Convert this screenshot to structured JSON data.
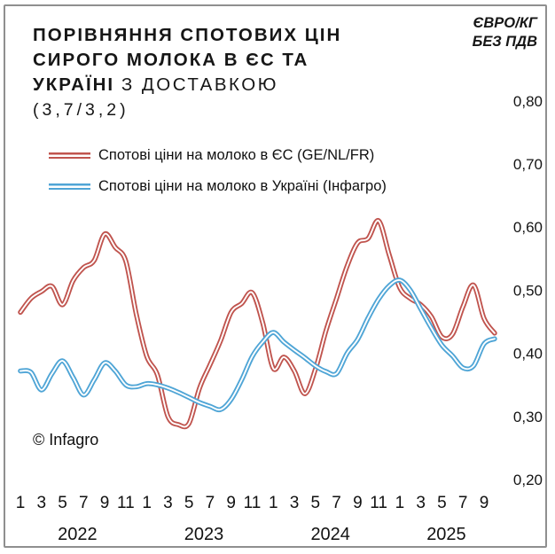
{
  "title": {
    "line1": "ПОРІВНЯННЯ СПОТОВИХ ЦІН",
    "line2": "СИРОГО МОЛОКА В ЄС ТА",
    "line3_bold": "УКРАЇНІ",
    "line3_regular": "З ДОСТАВКОЮ",
    "line4": "(3,7/3,2)"
  },
  "units": {
    "line1": "ЄВРО/КГ",
    "line2": "БЕЗ ПДВ"
  },
  "legend": {
    "items": [
      {
        "label": "Спотові ціни на молоко в ЄС (GE/NL/FR)",
        "color": "#c0544e"
      },
      {
        "label": "Спотові ціни на молоко в Україні (Інфагро)",
        "color": "#4fa5d6"
      }
    ]
  },
  "copyright": "© Infagro",
  "chart_data": {
    "type": "line",
    "title": "ПОРІВНЯННЯ СПОТОВИХ ЦІН СИРОГО МОЛОКА В ЄС ТА УКРАЇНІ З ДОСТАВКОЮ (3,7/3,2)",
    "ylabel": "ЄВРО/КГ БЕЗ ПДВ",
    "ylim": [
      0.2,
      0.8
    ],
    "grid": false,
    "legend_position": "top-left",
    "y_axis_side": "right",
    "x_start": "2022-01",
    "x_end": "2025-10",
    "x_unit": "month",
    "x_tick_labels": [
      "1",
      "3",
      "5",
      "7",
      "9",
      "11",
      "1",
      "3",
      "5",
      "7",
      "9",
      "11",
      "1",
      "3",
      "5",
      "7",
      "9",
      "11",
      "1",
      "3",
      "5",
      "7",
      "9"
    ],
    "year_labels": [
      "2022",
      "2023",
      "2024",
      "2025"
    ],
    "y_ticks": [
      {
        "label": "0,80",
        "value": 0.8
      },
      {
        "label": "0,70",
        "value": 0.7
      },
      {
        "label": "0,60",
        "value": 0.6
      },
      {
        "label": "0,50",
        "value": 0.5
      },
      {
        "label": "0,40",
        "value": 0.4
      },
      {
        "label": "0,30",
        "value": 0.3
      },
      {
        "label": "0,20",
        "value": 0.2
      }
    ],
    "series": [
      {
        "name": "Спотові ціни на молоко в ЄС (GE/NL/FR)",
        "color": "#c0544e",
        "values": [
          0.465,
          0.487,
          0.498,
          0.506,
          0.477,
          0.515,
          0.536,
          0.547,
          0.589,
          0.568,
          0.546,
          0.462,
          0.395,
          0.366,
          0.3,
          0.287,
          0.289,
          0.345,
          0.382,
          0.42,
          0.465,
          0.479,
          0.496,
          0.448,
          0.376,
          0.394,
          0.372,
          0.336,
          0.375,
          0.436,
          0.487,
          0.538,
          0.575,
          0.582,
          0.61,
          0.556,
          0.504,
          0.487,
          0.477,
          0.458,
          0.426,
          0.43,
          0.474,
          0.508,
          0.455,
          0.432
        ]
      },
      {
        "name": "Спотові ціни на молоко в Україні (Інфагро)",
        "color": "#4fa5d6",
        "values": [
          0.372,
          0.37,
          0.342,
          0.368,
          0.388,
          0.362,
          0.334,
          0.358,
          0.385,
          0.372,
          0.35,
          0.347,
          0.352,
          0.35,
          0.345,
          0.338,
          0.33,
          0.322,
          0.316,
          0.311,
          0.327,
          0.358,
          0.395,
          0.418,
          0.433,
          0.418,
          0.405,
          0.393,
          0.38,
          0.371,
          0.368,
          0.4,
          0.422,
          0.456,
          0.486,
          0.507,
          0.516,
          0.5,
          0.47,
          0.44,
          0.413,
          0.396,
          0.377,
          0.38,
          0.415,
          0.423
        ]
      }
    ]
  }
}
